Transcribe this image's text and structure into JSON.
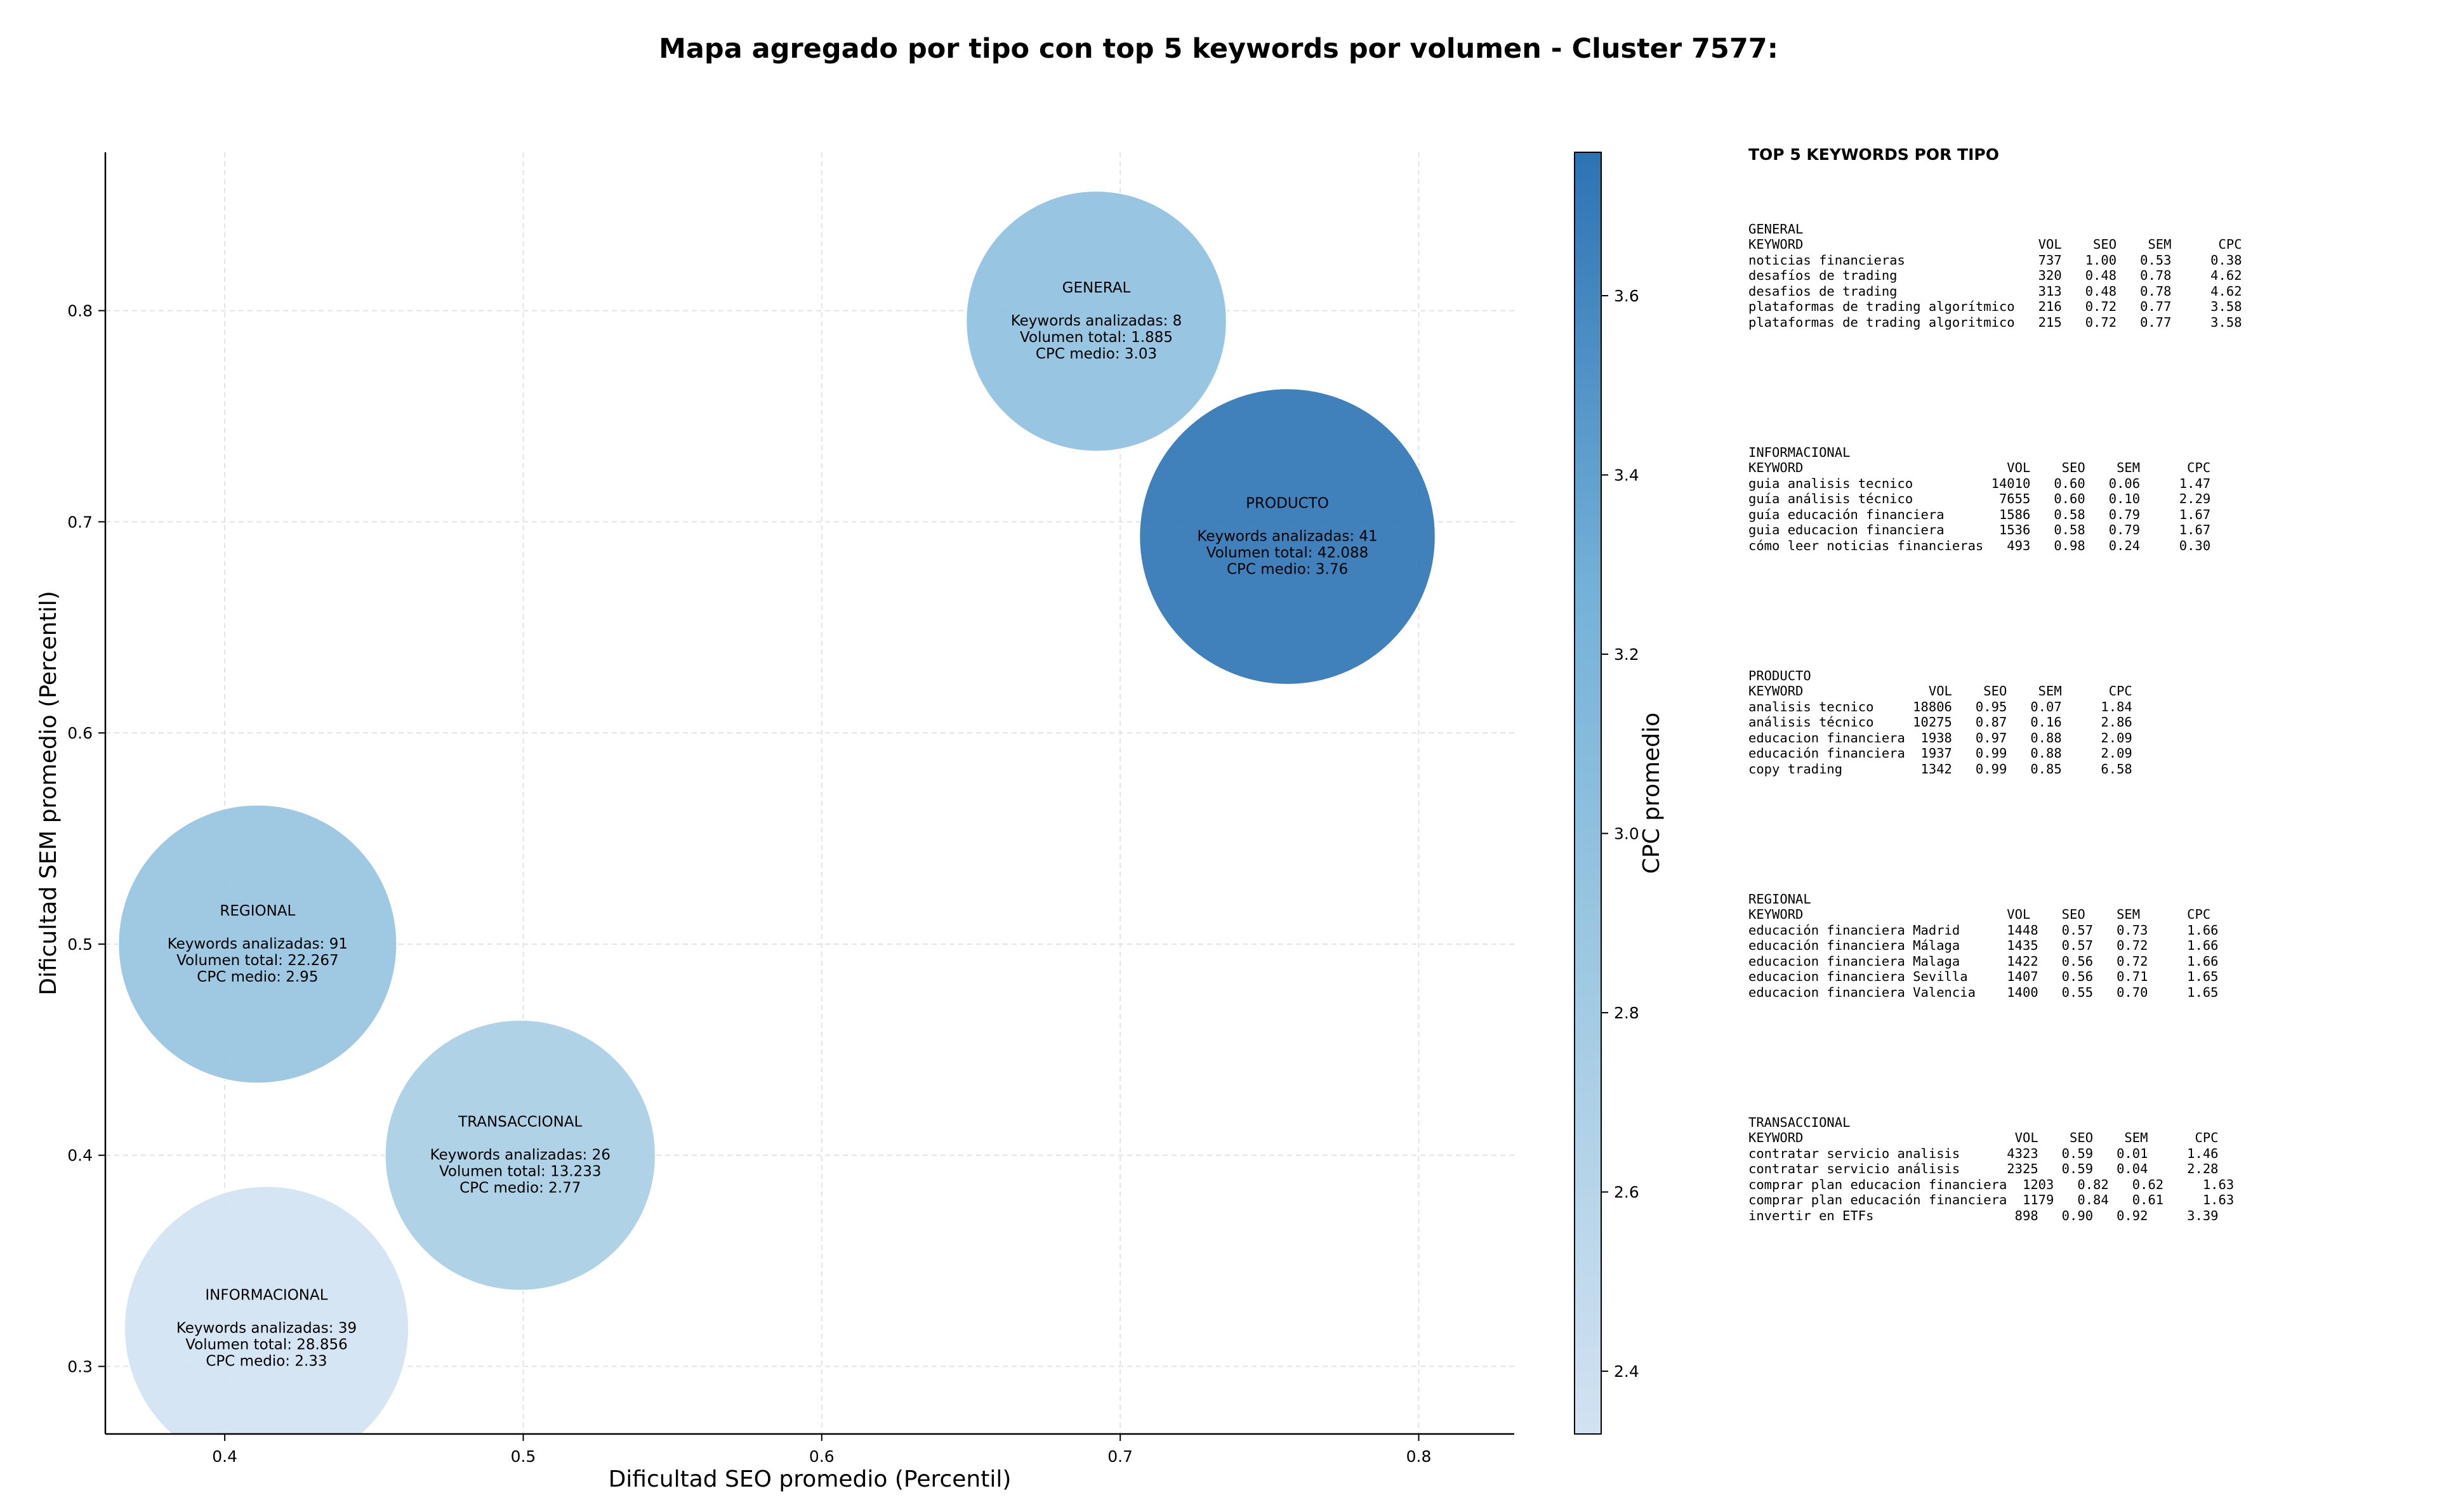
{
  "title": "Mapa agregado por tipo con top 5 keywords por volumen - Cluster 7577:",
  "chart_data": {
    "type": "scatter",
    "xlabel": "Dificultad SEO promedio (Percentil)",
    "ylabel": "Dificultad SEM promedio (Percentil)",
    "xlim": [
      0.36,
      0.832
    ],
    "ylim": [
      0.268,
      0.875
    ],
    "xticks": [
      "0.4",
      "0.5",
      "0.6",
      "0.7",
      "0.8"
    ],
    "yticks": [
      "0.3",
      "0.4",
      "0.5",
      "0.6",
      "0.7",
      "0.8"
    ],
    "grid": true,
    "colorbar": {
      "label": "CPC promedio",
      "range": [
        2.33,
        3.76
      ],
      "ticks": [
        "2.4",
        "2.6",
        "2.8",
        "3.0",
        "3.2",
        "3.4",
        "3.6"
      ],
      "colormap": [
        "#d2e2f2",
        "#a3cbe3",
        "#74b1d8",
        "#2c73b4"
      ]
    },
    "bubbles": [
      {
        "tipo": "GENERAL",
        "seo": 0.692,
        "sem": 0.795,
        "keywords_label": "Keywords analizadas: 8",
        "volumen_label": "Volumen total: 1.885",
        "cpc_label": "CPC medio: 3.03",
        "cpc": 3.03,
        "volumen": 1885
      },
      {
        "tipo": "PRODUCTO",
        "seo": 0.756,
        "sem": 0.693,
        "keywords_label": "Keywords analizadas: 41",
        "volumen_label": "Volumen total: 42.088",
        "cpc_label": "CPC medio: 3.76",
        "cpc": 3.76,
        "volumen": 42088
      },
      {
        "tipo": "REGIONAL",
        "seo": 0.411,
        "sem": 0.5,
        "keywords_label": "Keywords analizadas: 91",
        "volumen_label": "Volumen total: 22.267",
        "cpc_label": "CPC medio: 2.95",
        "cpc": 2.95,
        "volumen": 22267
      },
      {
        "tipo": "TRANSACCIONAL",
        "seo": 0.499,
        "sem": 0.4,
        "keywords_label": "Keywords analizadas: 26",
        "volumen_label": "Volumen total: 13.233",
        "cpc_label": "CPC medio: 2.77",
        "cpc": 2.77,
        "volumen": 13233
      },
      {
        "tipo": "INFORMACIONAL",
        "seo": 0.414,
        "sem": 0.318,
        "keywords_label": "Keywords analizadas: 39",
        "volumen_label": "Volumen total: 28.856",
        "cpc_label": "CPC medio: 2.33",
        "cpc": 2.33,
        "volumen": 28856
      }
    ]
  },
  "panel": {
    "title": "TOP 5 KEYWORDS POR TIPO",
    "groups": [
      {
        "name": "GENERAL",
        "lines": [
          "KEYWORD                              VOL    SEO    SEM      CPC",
          "noticias financieras                 737   1.00   0.53     0.38",
          "desafíos de trading                  320   0.48   0.78     4.62",
          "desafios de trading                  313   0.48   0.78     4.62",
          "plataformas de trading algorítmico   216   0.72   0.77     3.58",
          "plataformas de trading algoritmico   215   0.72   0.77     3.58"
        ]
      },
      {
        "name": "INFORMACIONAL",
        "lines": [
          "KEYWORD                          VOL    SEO    SEM      CPC",
          "guia analisis tecnico          14010   0.60   0.06     1.47",
          "guía análisis técnico           7655   0.60   0.10     2.29",
          "guía educación financiera       1586   0.58   0.79     1.67",
          "guia educacion financiera       1536   0.58   0.79     1.67",
          "cómo leer noticias financieras   493   0.98   0.24     0.30"
        ]
      },
      {
        "name": "PRODUCTO",
        "lines": [
          "KEYWORD                VOL    SEO    SEM      CPC",
          "analisis tecnico     18806   0.95   0.07     1.84",
          "análisis técnico     10275   0.87   0.16     2.86",
          "educacion financiera  1938   0.97   0.88     2.09",
          "educación financiera  1937   0.99   0.88     2.09",
          "copy trading          1342   0.99   0.85     6.58"
        ]
      },
      {
        "name": "REGIONAL",
        "lines": [
          "KEYWORD                          VOL    SEO    SEM      CPC",
          "educación financiera Madrid      1448   0.57   0.73     1.66",
          "educación financiera Málaga      1435   0.57   0.72     1.66",
          "educacion financiera Malaga      1422   0.56   0.72     1.66",
          "educacion financiera Sevilla     1407   0.56   0.71     1.65",
          "educacion financiera Valencia    1400   0.55   0.70     1.65"
        ]
      },
      {
        "name": "TRANSACCIONAL",
        "lines": [
          "KEYWORD                           VOL    SEO    SEM      CPC",
          "contratar servicio analisis      4323   0.59   0.01     1.46",
          "contratar servicio análisis      2325   0.59   0.04     2.28",
          "comprar plan educacion financiera  1203   0.82   0.62     1.63",
          "comprar plan educación financiera  1179   0.84   0.61     1.63",
          "invertir en ETFs                  898   0.90   0.92     3.39"
        ]
      }
    ]
  }
}
